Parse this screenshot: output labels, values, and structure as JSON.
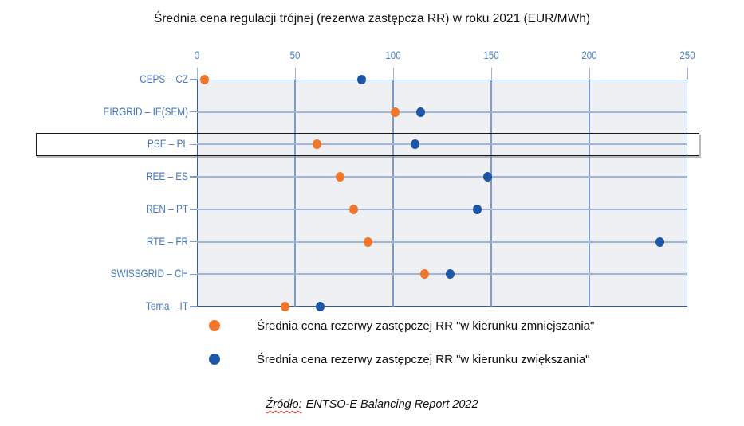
{
  "title": "Średnia cena regulacji trójnej (rezerwa zastępcza RR) w roku 2021 (EUR/MWh)",
  "chart_data": {
    "type": "scatter",
    "orientation": "horizontal-dot-plot",
    "categories": [
      "CEPS – CZ",
      "EIRGRID – IE(SEM)",
      "PSE – PL",
      "REE – ES",
      "REN – PT",
      "RTE – FR",
      "SWISSGRID – CH",
      "Terna – IT"
    ],
    "series": [
      {
        "name": "Średnia cena rezerwy zastępczej RR \"w kierunku zmniejszania\"",
        "color": "#f0762b",
        "values": [
          4,
          101,
          61,
          73,
          80,
          87,
          116,
          45
        ]
      },
      {
        "name": "Średnia cena rezerwy zastępczej RR \"w kierunku zwiększania\"",
        "color": "#1d55a7",
        "values": [
          84,
          114,
          111,
          148,
          143,
          236,
          129,
          63
        ]
      }
    ],
    "xlim": [
      0,
      250
    ],
    "xticks": [
      0,
      50,
      100,
      150,
      200,
      250
    ],
    "x_axis_position": "top",
    "grid": true,
    "legend_position": "bottom-left",
    "highlighted_category": "PSE – PL"
  },
  "source": {
    "prefix": "Źródło:",
    "text": "ENTSO-E Balancing Report 2022"
  },
  "colors": {
    "plot_background": "#eff0f4",
    "frame_border": "#2f5fa8",
    "gridline": "#7c9bcc",
    "row_line": "#9fb5da",
    "axis_label": "#4a7cc0",
    "highlight_outline": "#1a1a1a",
    "source_squiggle": "#e03030"
  }
}
